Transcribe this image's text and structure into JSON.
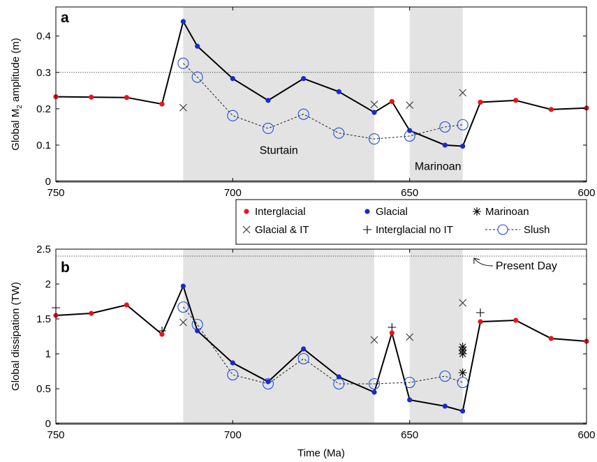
{
  "chart_data": [
    {
      "type": "line",
      "panel": "a",
      "xlabel": "",
      "ylabel": "Global M2 amplitude (m)",
      "ylabel_parts": [
        "Global M",
        "2",
        " amplitude (m)"
      ],
      "xlim": [
        750,
        600
      ],
      "ylim": [
        0,
        0.48
      ],
      "x_reversed": true,
      "xticks": [
        750,
        700,
        650,
        600
      ],
      "yticks": [
        0,
        0.1,
        0.2,
        0.3,
        0.4
      ],
      "grid": false,
      "reference_lines": [
        {
          "y": 0.3,
          "style": "dotted"
        }
      ],
      "shaded_regions": [
        {
          "x": [
            714,
            660
          ],
          "label": "Sturtain"
        },
        {
          "x": [
            650,
            635
          ],
          "label": "Marinoan"
        }
      ],
      "series": [
        {
          "name": "Interglacial",
          "marker": "dot",
          "color": "#e8141c",
          "x": [
            750,
            740,
            730,
            720,
            655,
            630,
            620,
            610,
            600
          ],
          "y": [
            0.233,
            0.232,
            0.231,
            0.213,
            0.22,
            0.218,
            0.223,
            0.198,
            0.202
          ]
        },
        {
          "name": "Glacial",
          "marker": "dot",
          "color": "#1a2acc",
          "x": [
            714,
            710,
            700,
            690,
            680,
            670,
            660,
            650,
            640,
            635
          ],
          "y": [
            0.44,
            0.372,
            0.283,
            0.223,
            0.283,
            0.247,
            0.19,
            0.14,
            0.1,
            0.097
          ]
        },
        {
          "name": "Glacial & IT",
          "marker": "x",
          "color": "#333333",
          "x": [
            714,
            660,
            650,
            635
          ],
          "y": [
            0.203,
            0.212,
            0.21,
            0.244
          ]
        },
        {
          "name": "Slush",
          "marker": "circle",
          "color": "#1f4fe0",
          "x": [
            714,
            710,
            700,
            690,
            680,
            670,
            660,
            650,
            640,
            635
          ],
          "y": [
            0.325,
            0.287,
            0.181,
            0.146,
            0.185,
            0.133,
            0.117,
            0.125,
            0.15,
            0.156
          ]
        }
      ],
      "main_line_x": [
        750,
        740,
        730,
        720,
        714,
        710,
        700,
        690,
        680,
        670,
        660,
        655,
        650,
        640,
        635,
        630,
        620,
        610,
        600
      ],
      "main_line_y": [
        0.233,
        0.232,
        0.231,
        0.213,
        0.44,
        0.372,
        0.283,
        0.223,
        0.283,
        0.247,
        0.19,
        0.22,
        0.14,
        0.1,
        0.097,
        0.218,
        0.223,
        0.198,
        0.202
      ]
    },
    {
      "type": "line",
      "panel": "b",
      "xlabel": "Time (Ma)",
      "ylabel": "Global dissipation (TW)",
      "xlim": [
        750,
        600
      ],
      "ylim": [
        0,
        2.5
      ],
      "x_reversed": true,
      "xticks": [
        750,
        700,
        650,
        600
      ],
      "yticks": [
        0,
        0.5,
        1,
        1.5,
        2,
        2.5
      ],
      "grid": false,
      "reference_lines": [
        {
          "y": 2.4,
          "style": "dotted",
          "label": "Present Day"
        }
      ],
      "shaded_regions": [
        {
          "x": [
            714,
            660
          ]
        },
        {
          "x": [
            650,
            635
          ]
        }
      ],
      "series": [
        {
          "name": "Interglacial",
          "marker": "dot",
          "color": "#e8141c",
          "x": [
            750,
            740,
            730,
            720,
            655,
            630,
            620,
            610,
            600
          ],
          "y": [
            1.55,
            1.58,
            1.7,
            1.28,
            1.3,
            1.46,
            1.48,
            1.22,
            1.18
          ]
        },
        {
          "name": "Glacial",
          "marker": "dot",
          "color": "#1a2acc",
          "x": [
            714,
            710,
            700,
            690,
            680,
            670,
            660,
            650,
            640,
            635
          ],
          "y": [
            1.97,
            1.33,
            0.87,
            0.6,
            1.07,
            0.67,
            0.45,
            0.34,
            0.25,
            0.18
          ]
        },
        {
          "name": "Marinoan",
          "marker": "asterisk",
          "color": "#000000",
          "x": [
            635,
            635,
            635,
            635
          ],
          "y": [
            1.1,
            1.05,
            1.0,
            0.73
          ]
        },
        {
          "name": "Glacial & IT",
          "marker": "x",
          "color": "#333333",
          "x": [
            714,
            660,
            650,
            635
          ],
          "y": [
            1.45,
            1.2,
            1.24,
            1.73
          ]
        },
        {
          "name": "Interglacial no IT",
          "marker": "plus",
          "color": "#000000",
          "x": [
            750,
            720,
            655,
            630
          ],
          "y": [
            1.66,
            1.33,
            1.38,
            1.59
          ]
        },
        {
          "name": "Slush",
          "marker": "circle",
          "color": "#1f4fe0",
          "x": [
            714,
            710,
            700,
            690,
            680,
            670,
            660,
            650,
            640,
            635
          ],
          "y": [
            1.67,
            1.42,
            0.7,
            0.57,
            0.93,
            0.57,
            0.57,
            0.59,
            0.68,
            0.59
          ]
        }
      ],
      "main_line_x": [
        750,
        740,
        730,
        720,
        714,
        710,
        700,
        690,
        680,
        670,
        660,
        655,
        650,
        640,
        635,
        630,
        620,
        610,
        600
      ],
      "main_line_y": [
        1.55,
        1.58,
        1.7,
        1.28,
        1.97,
        1.33,
        0.87,
        0.6,
        1.07,
        0.67,
        0.45,
        1.3,
        0.34,
        0.25,
        0.18,
        1.46,
        1.48,
        1.22,
        1.18
      ]
    }
  ],
  "legend": {
    "entries": [
      {
        "label": "Interglacial",
        "marker": "dot",
        "color": "#e8141c"
      },
      {
        "label": "Glacial",
        "marker": "dot",
        "color": "#1a2acc"
      },
      {
        "label": "Marinoan",
        "marker": "asterisk",
        "color": "#000000"
      },
      {
        "label": "Glacial & IT",
        "marker": "x",
        "color": "#333333"
      },
      {
        "label": "Interglacial no IT",
        "marker": "plus",
        "color": "#000000"
      },
      {
        "label": "Slush",
        "marker": "slush",
        "color": "#1f4fe0"
      }
    ]
  },
  "colors": {
    "interglacial": "#e8141c",
    "glacial": "#1a2acc",
    "slush": "#1f4fe0",
    "shade": "#e3e3e3",
    "line": "#000000"
  }
}
